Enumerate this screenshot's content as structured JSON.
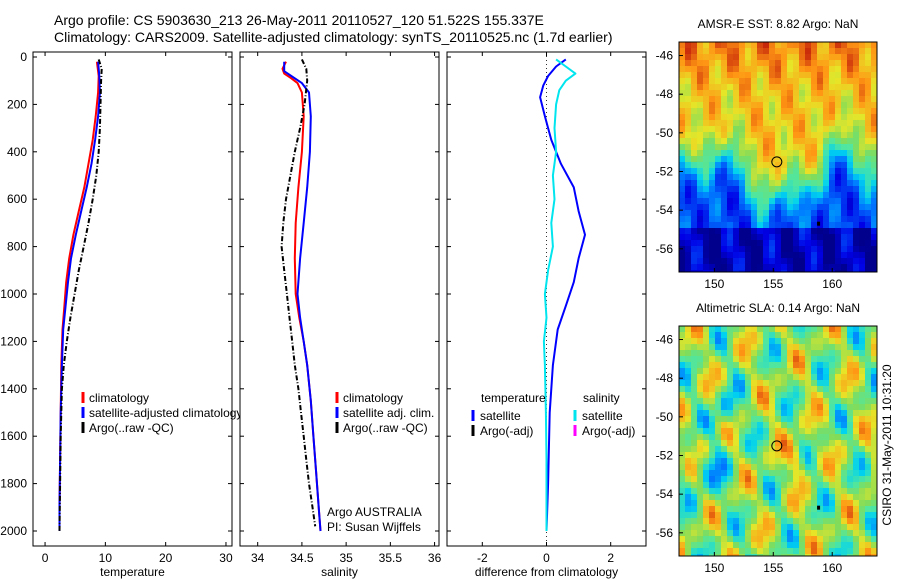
{
  "header": {
    "line1": "Argo profile: CS 5903630_213 26-May-2011 20110527_120 51.522S 155.337E",
    "line2": "Climatology: CARS2009. Satellite-adjusted climatology: synTS_20110525.nc (1.7d earlier)"
  },
  "depth_ticks": [
    "0",
    "200",
    "400",
    "600",
    "800",
    "1000",
    "1200",
    "1400",
    "1600",
    "1800",
    "2000"
  ],
  "chart_data": [
    {
      "type": "line",
      "xlabel": "temperature",
      "xticks": [
        "0",
        "10",
        "20",
        "30"
      ],
      "xlim": [
        -2,
        31
      ],
      "ylim": [
        0,
        2050
      ],
      "series": [
        {
          "name": "climatology",
          "color": "#ff0000",
          "points": [
            [
              8.6,
              20
            ],
            [
              8.9,
              80
            ],
            [
              8.8,
              150
            ],
            [
              8.4,
              250
            ],
            [
              7.9,
              350
            ],
            [
              7.2,
              450
            ],
            [
              6.5,
              550
            ],
            [
              5.6,
              650
            ],
            [
              4.7,
              750
            ],
            [
              4.0,
              850
            ],
            [
              3.5,
              950
            ],
            [
              3.2,
              1050
            ],
            [
              2.9,
              1150
            ],
            [
              2.7,
              1300
            ],
            [
              2.6,
              1500
            ],
            [
              2.5,
              1700
            ],
            [
              2.4,
              1900
            ],
            [
              2.4,
              2000
            ]
          ]
        },
        {
          "name": "satellite-adjusted climatology",
          "color": "#0000ff",
          "points": [
            [
              8.8,
              20
            ],
            [
              9.0,
              80
            ],
            [
              9.1,
              150
            ],
            [
              8.8,
              250
            ],
            [
              8.3,
              350
            ],
            [
              7.7,
              450
            ],
            [
              6.9,
              550
            ],
            [
              6.0,
              650
            ],
            [
              5.1,
              750
            ],
            [
              4.3,
              850
            ],
            [
              3.8,
              950
            ],
            [
              3.4,
              1050
            ],
            [
              3.0,
              1150
            ],
            [
              2.8,
              1300
            ],
            [
              2.6,
              1500
            ],
            [
              2.5,
              1700
            ],
            [
              2.4,
              1900
            ],
            [
              2.4,
              2000
            ]
          ]
        },
        {
          "name": "Argo(..raw -QC)",
          "color": "#000000",
          "dashed": true,
          "points": [
            [
              8.9,
              10
            ],
            [
              9.4,
              50
            ],
            [
              9.3,
              100
            ],
            [
              9.2,
              200
            ],
            [
              9.1,
              300
            ],
            [
              8.9,
              400
            ],
            [
              8.5,
              500
            ],
            [
              7.9,
              600
            ],
            [
              7.2,
              700
            ],
            [
              6.4,
              800
            ],
            [
              5.6,
              900
            ],
            [
              4.9,
              1000
            ],
            [
              4.2,
              1100
            ],
            [
              3.6,
              1200
            ],
            [
              3.1,
              1300
            ],
            [
              2.8,
              1400
            ],
            [
              2.6,
              1600
            ],
            [
              2.5,
              1800
            ],
            [
              2.4,
              2000
            ]
          ]
        }
      ],
      "legend": [
        {
          "label": "climatology",
          "color": "#ff0000"
        },
        {
          "label": "satellite-adjusted climatology",
          "color": "#0000ff"
        },
        {
          "label": "Argo(..raw -QC)",
          "color": "#000000"
        }
      ]
    },
    {
      "type": "line",
      "xlabel": "salinity",
      "xticks": [
        "34",
        "34.5",
        "35",
        "35.5",
        "36"
      ],
      "xlim": [
        33.8,
        36.05
      ],
      "ylim": [
        0,
        2050
      ],
      "series": [
        {
          "name": "climatology",
          "color": "#ff0000",
          "points": [
            [
              34.32,
              20
            ],
            [
              34.28,
              50
            ],
            [
              34.3,
              70
            ],
            [
              34.38,
              90
            ],
            [
              34.45,
              110
            ],
            [
              34.5,
              150
            ],
            [
              34.52,
              250
            ],
            [
              34.5,
              400
            ],
            [
              34.46,
              550
            ],
            [
              34.43,
              700
            ],
            [
              34.42,
              850
            ],
            [
              34.43,
              1000
            ],
            [
              34.47,
              1100
            ],
            [
              34.52,
              1200
            ],
            [
              34.56,
              1300
            ],
            [
              34.6,
              1450
            ],
            [
              34.63,
              1600
            ],
            [
              34.66,
              1750
            ],
            [
              34.69,
              1900
            ],
            [
              34.71,
              2000
            ]
          ]
        },
        {
          "name": "satellite adj. clim.",
          "color": "#0000ff",
          "points": [
            [
              34.3,
              20
            ],
            [
              34.3,
              60
            ],
            [
              34.38,
              80
            ],
            [
              34.5,
              110
            ],
            [
              34.58,
              150
            ],
            [
              34.6,
              250
            ],
            [
              34.59,
              400
            ],
            [
              34.56,
              550
            ],
            [
              34.52,
              700
            ],
            [
              34.48,
              850
            ],
            [
              34.45,
              1000
            ],
            [
              34.48,
              1100
            ],
            [
              34.52,
              1200
            ],
            [
              34.56,
              1300
            ],
            [
              34.6,
              1450
            ],
            [
              34.63,
              1600
            ],
            [
              34.66,
              1750
            ],
            [
              34.69,
              1900
            ],
            [
              34.71,
              2000
            ]
          ]
        },
        {
          "name": "Argo(..raw -QC)",
          "color": "#000000",
          "dashed": true,
          "points": [
            [
              34.5,
              10
            ],
            [
              34.55,
              50
            ],
            [
              34.56,
              100
            ],
            [
              34.53,
              200
            ],
            [
              34.48,
              300
            ],
            [
              34.42,
              400
            ],
            [
              34.37,
              500
            ],
            [
              34.32,
              600
            ],
            [
              34.29,
              700
            ],
            [
              34.27,
              800
            ],
            [
              34.3,
              900
            ],
            [
              34.33,
              1000
            ],
            [
              34.36,
              1100
            ],
            [
              34.39,
              1200
            ],
            [
              34.42,
              1300
            ],
            [
              34.46,
              1400
            ],
            [
              34.49,
              1500
            ],
            [
              34.52,
              1600
            ],
            [
              34.55,
              1700
            ],
            [
              34.58,
              1800
            ],
            [
              34.62,
              1900
            ],
            [
              34.65,
              1980
            ]
          ]
        }
      ],
      "legend": [
        {
          "label": "climatology",
          "color": "#ff0000"
        },
        {
          "label": "satellite adj. clim.",
          "color": "#0000ff"
        },
        {
          "label": "Argo(..raw -QC)",
          "color": "#000000"
        }
      ],
      "annotation": [
        "Argo AUSTRALIA",
        "PI: Susan Wijffels"
      ]
    },
    {
      "type": "line",
      "xlabel": "difference from climatology",
      "xticks": [
        "-2",
        "0",
        "2"
      ],
      "xlim": [
        -3.1,
        3.1
      ],
      "ylim": [
        0,
        2050
      ],
      "zero_line": true,
      "series": [
        {
          "name": "temperature satellite",
          "color": "#0000ff",
          "points": [
            [
              0.6,
              10
            ],
            [
              0.3,
              40
            ],
            [
              0.05,
              80
            ],
            [
              -0.1,
              120
            ],
            [
              -0.2,
              170
            ],
            [
              -0.05,
              250
            ],
            [
              0.15,
              350
            ],
            [
              0.45,
              450
            ],
            [
              0.85,
              550
            ],
            [
              1.0,
              650
            ],
            [
              1.2,
              750
            ],
            [
              1.0,
              850
            ],
            [
              0.85,
              950
            ],
            [
              0.6,
              1050
            ],
            [
              0.35,
              1150
            ],
            [
              0.2,
              1300
            ],
            [
              0.1,
              1500
            ],
            [
              0.05,
              1800
            ],
            [
              0.0,
              2000
            ]
          ]
        },
        {
          "name": "salinity satellite",
          "color": "#00e5ee",
          "points": [
            [
              0.3,
              10
            ],
            [
              0.6,
              40
            ],
            [
              0.9,
              70
            ],
            [
              0.6,
              100
            ],
            [
              0.4,
              140
            ],
            [
              0.3,
              200
            ],
            [
              0.25,
              300
            ],
            [
              0.3,
              400
            ],
            [
              0.2,
              500
            ],
            [
              0.25,
              600
            ],
            [
              0.15,
              700
            ],
            [
              0.2,
              800
            ],
            [
              0.05,
              900
            ],
            [
              -0.05,
              1000
            ],
            [
              0.0,
              1100
            ],
            [
              -0.08,
              1200
            ],
            [
              -0.05,
              1300
            ],
            [
              -0.02,
              1500
            ],
            [
              0.0,
              1700
            ],
            [
              0.0,
              2000
            ]
          ]
        }
      ],
      "legend_left_title": "temperature",
      "legend_right_title": "salinity",
      "legend_left": [
        {
          "label": "satellite",
          "color": "#0000ff"
        },
        {
          "label": "Argo(-adj)",
          "color": "#000000"
        }
      ],
      "legend_right": [
        {
          "label": "satellite",
          "color": "#00e5ee"
        },
        {
          "label": "Argo(-adj)",
          "color": "#ff00ff"
        }
      ]
    },
    {
      "type": "heatmap",
      "title": "AMSR-E SST: 8.82 Argo: NaN",
      "xticks": [
        "150",
        "155",
        "160"
      ],
      "yticks": [
        "-46",
        "-48",
        "-50",
        "-52",
        "-54",
        "-56"
      ],
      "xlim": [
        147,
        163.8
      ],
      "ylim": [
        -57.2,
        -45.3
      ],
      "marker": {
        "lon": 155.3,
        "lat": -51.5
      }
    },
    {
      "type": "heatmap",
      "title": "Altimetric SLA: 0.14 Argo: NaN",
      "xticks": [
        "150",
        "155",
        "160"
      ],
      "yticks": [
        "-46",
        "-48",
        "-50",
        "-52",
        "-54",
        "-56"
      ],
      "xlim": [
        147,
        163.8
      ],
      "ylim": [
        -57.2,
        -45.3
      ],
      "marker": {
        "lon": 155.3,
        "lat": -51.5
      },
      "side_label": "CSIRO 31-May-2011 10:31:20"
    }
  ]
}
